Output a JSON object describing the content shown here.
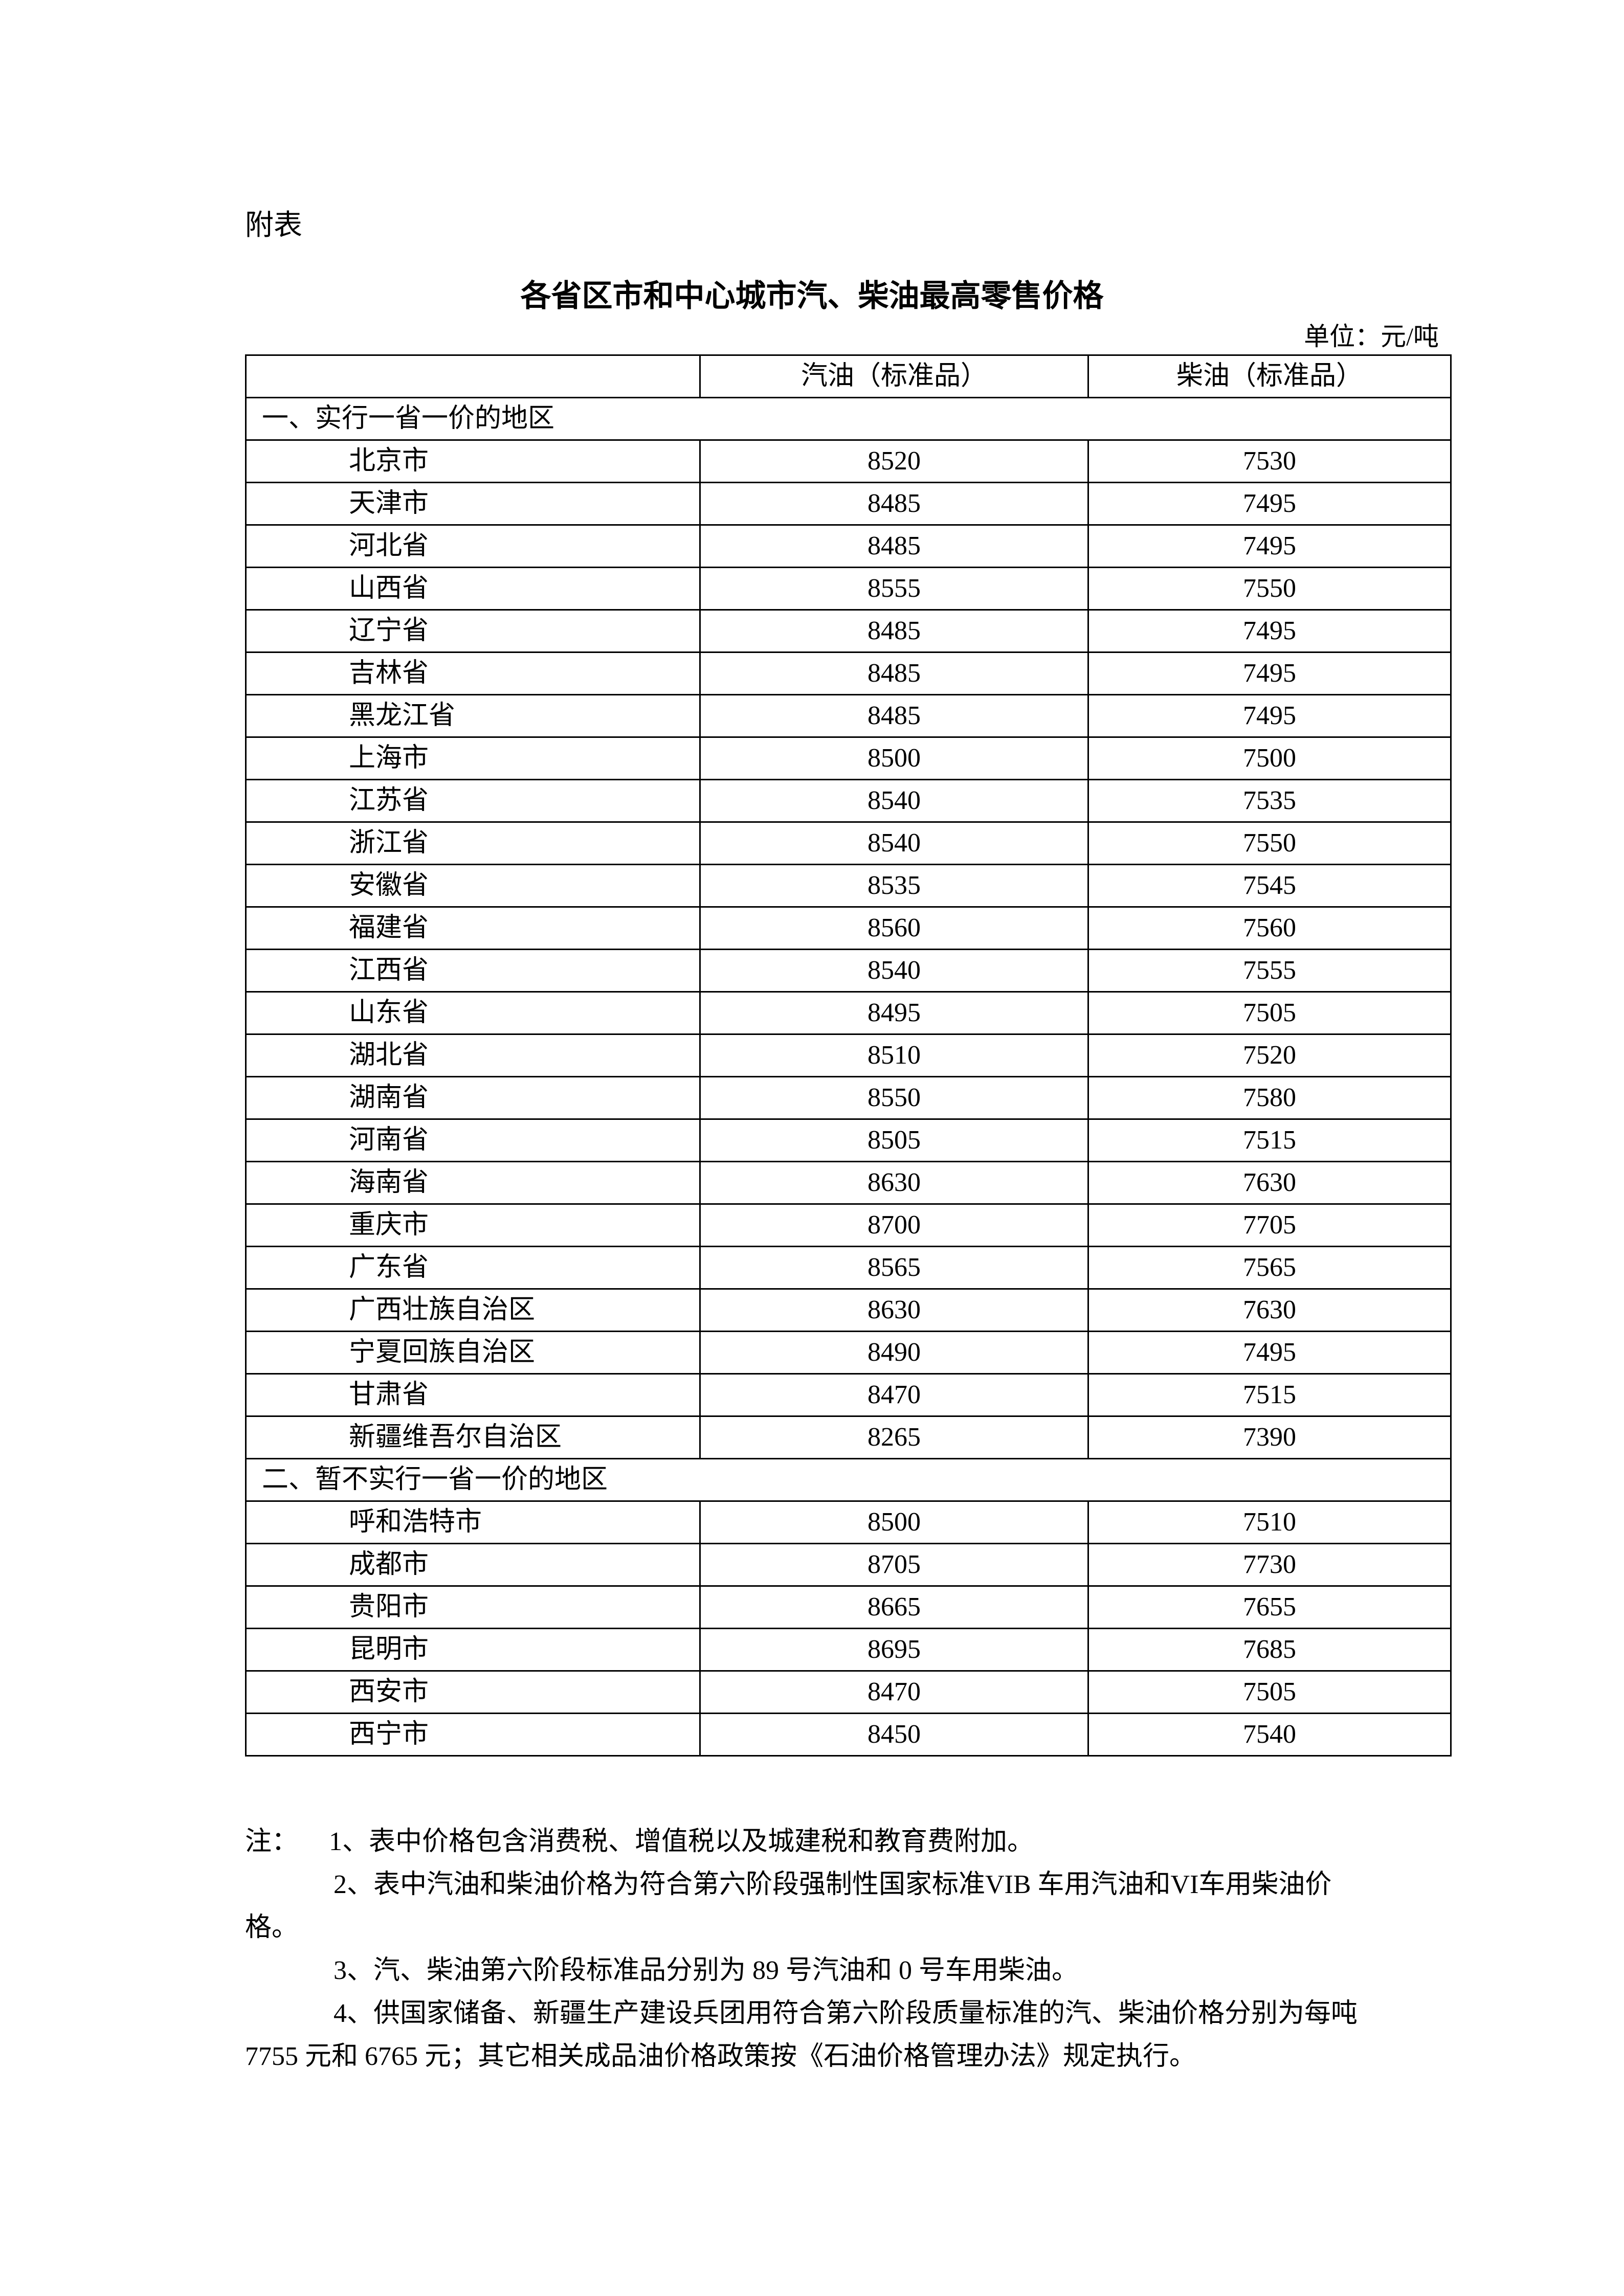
{
  "appendix_label": "附表",
  "title": "各省区市和中心城市汽、柴油最高零售价格",
  "unit": "单位：元/吨",
  "table": {
    "headers": [
      "",
      "汽油（标准品）",
      "柴油（标准品）"
    ],
    "sections": [
      {
        "label": "一、实行一省一价的地区",
        "rows": [
          [
            "北京市",
            "8520",
            "7530"
          ],
          [
            "天津市",
            "8485",
            "7495"
          ],
          [
            "河北省",
            "8485",
            "7495"
          ],
          [
            "山西省",
            "8555",
            "7550"
          ],
          [
            "辽宁省",
            "8485",
            "7495"
          ],
          [
            "吉林省",
            "8485",
            "7495"
          ],
          [
            "黑龙江省",
            "8485",
            "7495"
          ],
          [
            "上海市",
            "8500",
            "7500"
          ],
          [
            "江苏省",
            "8540",
            "7535"
          ],
          [
            "浙江省",
            "8540",
            "7550"
          ],
          [
            "安徽省",
            "8535",
            "7545"
          ],
          [
            "福建省",
            "8560",
            "7560"
          ],
          [
            "江西省",
            "8540",
            "7555"
          ],
          [
            "山东省",
            "8495",
            "7505"
          ],
          [
            "湖北省",
            "8510",
            "7520"
          ],
          [
            "湖南省",
            "8550",
            "7580"
          ],
          [
            "河南省",
            "8505",
            "7515"
          ],
          [
            "海南省",
            "8630",
            "7630"
          ],
          [
            "重庆市",
            "8700",
            "7705"
          ],
          [
            "广东省",
            "8565",
            "7565"
          ],
          [
            "广西壮族自治区",
            "8630",
            "7630"
          ],
          [
            "宁夏回族自治区",
            "8490",
            "7495"
          ],
          [
            "甘肃省",
            "8470",
            "7515"
          ],
          [
            "新疆维吾尔自治区",
            "8265",
            "7390"
          ]
        ]
      },
      {
        "label": "二、暂不实行一省一价的地区",
        "rows": [
          [
            "呼和浩特市",
            "8500",
            "7510"
          ],
          [
            "成都市",
            "8705",
            "7730"
          ],
          [
            "贵阳市",
            "8665",
            "7655"
          ],
          [
            "昆明市",
            "8695",
            "7685"
          ],
          [
            "西安市",
            "8470",
            "7505"
          ],
          [
            "西宁市",
            "8450",
            "7540"
          ]
        ]
      }
    ]
  },
  "notes": {
    "prefix": "注：",
    "line1": "1、表中价格包含消费税、增值税以及城建税和教育费附加。",
    "line2a": "2、表中汽油和柴油价格为符合第六阶段强制性国家标准VIB 车用汽油和VI车用柴油价",
    "line2b": "格。",
    "line3": "3、汽、柴油第六阶段标准品分别为 89 号汽油和 0 号车用柴油。",
    "line4a": "4、供国家储备、新疆生产建设兵团用符合第六阶段质量标准的汽、柴油价格分别为每吨",
    "line4b": "7755 元和 6765 元；其它相关成品油价格政策按《石油价格管理办法》规定执行。"
  }
}
